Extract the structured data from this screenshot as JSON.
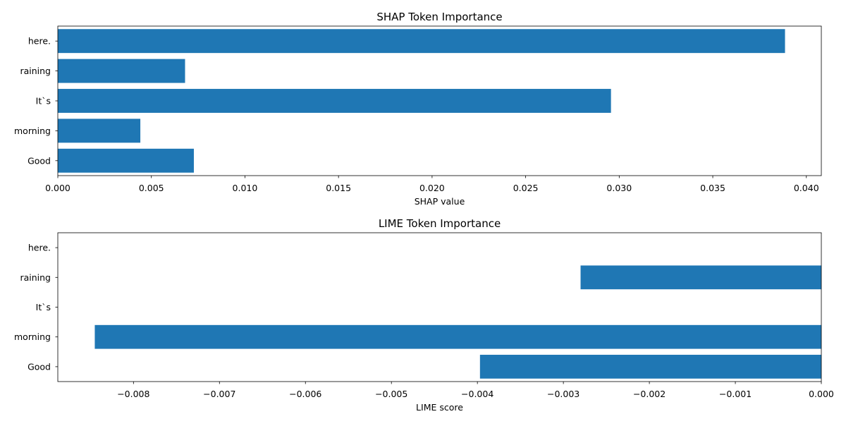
{
  "chart_data": [
    {
      "type": "bar",
      "orientation": "horizontal",
      "title": "SHAP Token Importance",
      "xlabel": "SHAP value",
      "ylabel": "",
      "categories": [
        "Good",
        "morning",
        "It`s",
        "raining",
        "here."
      ],
      "values": [
        0.00727,
        0.00441,
        0.02956,
        0.0068,
        0.03886
      ],
      "xlim": [
        0.0,
        0.0408
      ],
      "xticks": [
        0.0,
        0.005,
        0.01,
        0.015,
        0.02,
        0.025,
        0.03,
        0.035,
        0.04
      ],
      "xtick_labels": [
        "0.000",
        "0.005",
        "0.010",
        "0.015",
        "0.020",
        "0.025",
        "0.030",
        "0.035",
        "0.040"
      ],
      "grid": false,
      "color": "#1f77b4"
    },
    {
      "type": "bar",
      "orientation": "horizontal",
      "title": "LIME Token Importance",
      "xlabel": "LIME score",
      "ylabel": "",
      "categories": [
        "Good",
        "morning",
        "It`s",
        "raining",
        "here."
      ],
      "values": [
        -0.00397,
        -0.00845,
        0,
        -0.0028,
        0
      ],
      "xlim": [
        -0.00888,
        0.0
      ],
      "xticks": [
        -0.008,
        -0.007,
        -0.006,
        -0.005,
        -0.004,
        -0.003,
        -0.002,
        -0.001,
        0.0
      ],
      "xtick_labels": [
        "−0.008",
        "−0.007",
        "−0.006",
        "−0.005",
        "−0.004",
        "−0.003",
        "−0.002",
        "−0.001",
        "0.000"
      ],
      "grid": false,
      "color": "#1f77b4"
    }
  ]
}
